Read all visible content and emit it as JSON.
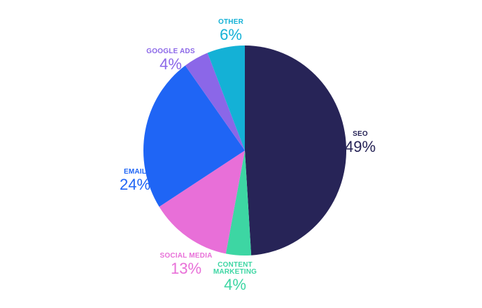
{
  "chart_data": {
    "type": "pie",
    "categories": [
      "SEO",
      "CONTENT MARKETING",
      "SOCIAL MEDIA",
      "EMAIL",
      "GOOGLE ADS",
      "OTHER"
    ],
    "values": [
      49,
      4,
      13,
      24,
      4,
      6
    ],
    "value_labels": [
      "49%",
      "4%",
      "13%",
      "24%",
      "4%",
      "6%"
    ],
    "colors": [
      "#272457",
      "#3dd6a3",
      "#e86fd8",
      "#1f65f5",
      "#8b67e8",
      "#14b1d6"
    ]
  }
}
